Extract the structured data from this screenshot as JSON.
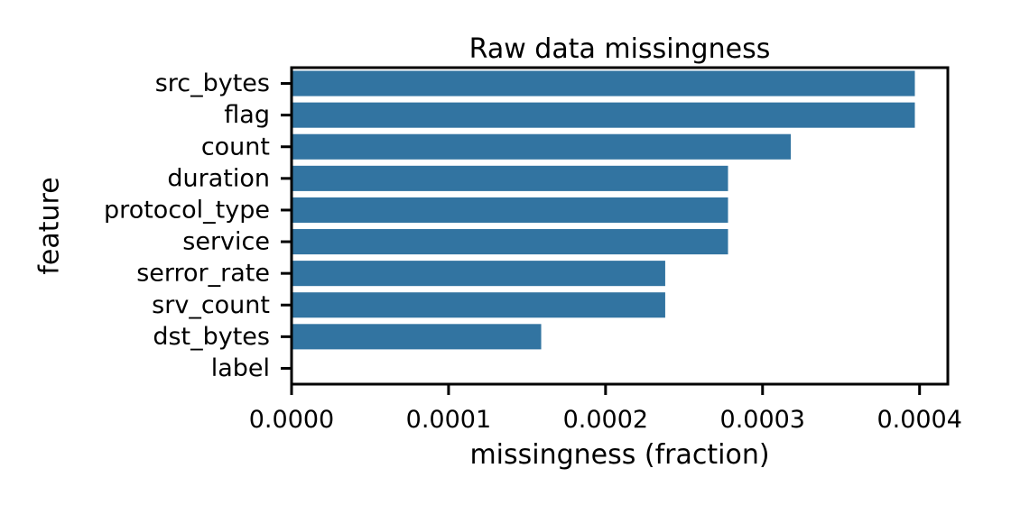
{
  "chart_data": {
    "type": "bar",
    "orientation": "horizontal",
    "title": "Raw data missingness",
    "xlabel": "missingness (fraction)",
    "ylabel": "feature",
    "categories": [
      "src_bytes",
      "flag",
      "count",
      "duration",
      "protocol_type",
      "service",
      "serror_rate",
      "srv_count",
      "dst_bytes",
      "label"
    ],
    "values": [
      0.000397,
      0.000397,
      0.000318,
      0.000278,
      0.000278,
      0.000278,
      0.000238,
      0.000238,
      0.000159,
      0.0
    ],
    "xlim": [
      0,
      0.000418
    ],
    "xticks": [
      0,
      0.0001,
      0.0002,
      0.0003,
      0.0004
    ],
    "xtick_labels": [
      "0.0000",
      "0.0001",
      "0.0002",
      "0.0003",
      "0.0004"
    ],
    "bar_color": "#3274a1",
    "grid": false
  }
}
